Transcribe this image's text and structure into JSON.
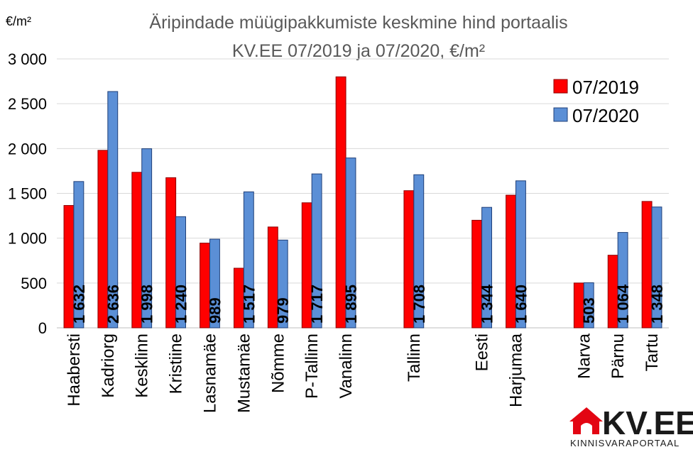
{
  "chart_data": {
    "type": "bar",
    "title_line1": "Äripindade müügipakkumiste keskmine hind portaalis",
    "title_line2": "KV.EE 07/2019 ja 07/2020, €/m²",
    "unit_label": "€/m²",
    "ylim": [
      0,
      3000
    ],
    "yticks": [
      {
        "value": 0,
        "label": "0"
      },
      {
        "value": 500,
        "label": "500"
      },
      {
        "value": 1000,
        "label": "1 000"
      },
      {
        "value": 1500,
        "label": "1 500"
      },
      {
        "value": 2000,
        "label": "2 000"
      },
      {
        "value": 2500,
        "label": "2 500"
      },
      {
        "value": 3000,
        "label": "3 000"
      }
    ],
    "grid": true,
    "legend_position": "top-right",
    "categories": [
      "Haabersti",
      "Kadriorg",
      "Kesklinn",
      "Kristiine",
      "Lasnamäe",
      "Mustamäe",
      "Nõmme",
      "P-Tallinn",
      "Vanalinn",
      "",
      "Tallinn",
      "",
      "Eesti",
      "Harjumaa",
      "",
      "Narva",
      "Pärnu",
      "Tartu"
    ],
    "series": [
      {
        "name": "07/2019",
        "color": "#ff0000",
        "values": [
          1365,
          1980,
          1735,
          1675,
          945,
          665,
          1125,
          1395,
          2800,
          null,
          1530,
          null,
          1200,
          1480,
          null,
          500,
          810,
          1410
        ]
      },
      {
        "name": "07/2020",
        "color": "#5b8fd6",
        "values": [
          1632,
          2636,
          1998,
          1240,
          989,
          1517,
          979,
          1717,
          1895,
          null,
          1708,
          null,
          1344,
          1640,
          null,
          503,
          1064,
          1348
        ],
        "labels": [
          "1 632",
          "2 636",
          "1 998",
          "1 240",
          "989",
          "1 517",
          "979",
          "1 717",
          "1 895",
          "",
          "1 708",
          "",
          "1 344",
          "1 640",
          "",
          "503",
          "1 064",
          "1 348"
        ]
      }
    ]
  },
  "logo": {
    "brand": "KV.EE",
    "tagline": "KINNISVARAPORTAAL"
  }
}
